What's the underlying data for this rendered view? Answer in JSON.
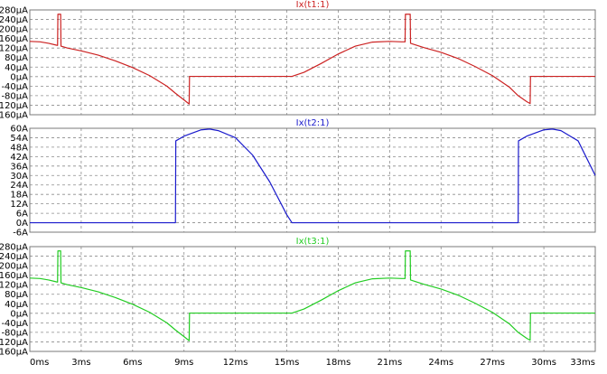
{
  "chart_data": [
    {
      "type": "line",
      "title": "Ix(t1:1)",
      "title_color": "#cc2222",
      "series": [
        {
          "name": "Ix(t1:1)",
          "color": "#cc2222",
          "points": [
            [
              0,
              148
            ],
            [
              0.6,
              146
            ],
            [
              1.1,
              140
            ],
            [
              1.5,
              133
            ],
            [
              1.62,
              131
            ],
            [
              1.64,
              262
            ],
            [
              1.8,
              262
            ],
            [
              1.82,
              128
            ],
            [
              2.2,
              120
            ],
            [
              3,
              108
            ],
            [
              4,
              90
            ],
            [
              5,
              66
            ],
            [
              6,
              38
            ],
            [
              7,
              4
            ],
            [
              8,
              -40
            ],
            [
              8.5,
              -70
            ],
            [
              9,
              -98
            ],
            [
              9.3,
              -115
            ],
            [
              9.32,
              1
            ],
            [
              15.3,
              1
            ],
            [
              16,
              18
            ],
            [
              17,
              55
            ],
            [
              18,
              95
            ],
            [
              19,
              128
            ],
            [
              20,
              145
            ],
            [
              21,
              148
            ],
            [
              21.7,
              146
            ],
            [
              21.9,
              146
            ],
            [
              21.92,
              262
            ],
            [
              22.2,
              262
            ],
            [
              22.22,
              140
            ],
            [
              23,
              122
            ],
            [
              24,
              102
            ],
            [
              25,
              76
            ],
            [
              26,
              42
            ],
            [
              27,
              4
            ],
            [
              28,
              -45
            ],
            [
              28.5,
              -80
            ],
            [
              29,
              -105
            ],
            [
              29.2,
              -113
            ],
            [
              29.22,
              1
            ],
            [
              33,
              1
            ]
          ]
        }
      ],
      "y_ticks": [
        "280µA",
        "240µA",
        "200µA",
        "160µA",
        "120µA",
        "80µA",
        "40µA",
        "0µA",
        "-40µA",
        "-80µA",
        "-120µA",
        "-160µA"
      ],
      "ylim": [
        -160,
        280
      ]
    },
    {
      "type": "line",
      "title": "Ix(t2:1)",
      "title_color": "#1a1acc",
      "series": [
        {
          "name": "Ix(t2:1)",
          "color": "#1a1acc",
          "points": [
            [
              0,
              0
            ],
            [
              8.5,
              0
            ],
            [
              8.52,
              52
            ],
            [
              9,
              55
            ],
            [
              10,
              59
            ],
            [
              10.5,
              59.5
            ],
            [
              11,
              58.5
            ],
            [
              12,
              54
            ],
            [
              13,
              43
            ],
            [
              14,
              26
            ],
            [
              15,
              5
            ],
            [
              15.3,
              0
            ],
            [
              28.5,
              0
            ],
            [
              28.52,
              52
            ],
            [
              29,
              55
            ],
            [
              30,
              59
            ],
            [
              30.5,
              59.5
            ],
            [
              31,
              58.5
            ],
            [
              32,
              52
            ],
            [
              33,
              30
            ]
          ]
        }
      ],
      "y_ticks": [
        "60A",
        "54A",
        "48A",
        "42A",
        "36A",
        "30A",
        "24A",
        "18A",
        "12A",
        "6A",
        "0A",
        "-6A"
      ],
      "ylim": [
        -6,
        60
      ]
    },
    {
      "type": "line",
      "title": "Ix(t3:1)",
      "title_color": "#22cc22",
      "series": [
        {
          "name": "Ix(t3:1)",
          "color": "#22cc22",
          "points": [
            [
              0,
              148
            ],
            [
              0.6,
              146
            ],
            [
              1.1,
              140
            ],
            [
              1.5,
              133
            ],
            [
              1.62,
              131
            ],
            [
              1.64,
              262
            ],
            [
              1.8,
              262
            ],
            [
              1.82,
              128
            ],
            [
              2.2,
              120
            ],
            [
              3,
              108
            ],
            [
              4,
              90
            ],
            [
              5,
              66
            ],
            [
              6,
              38
            ],
            [
              7,
              4
            ],
            [
              8,
              -40
            ],
            [
              8.5,
              -70
            ],
            [
              9,
              -98
            ],
            [
              9.3,
              -115
            ],
            [
              9.32,
              1
            ],
            [
              15.3,
              1
            ],
            [
              16,
              18
            ],
            [
              17,
              55
            ],
            [
              18,
              95
            ],
            [
              19,
              128
            ],
            [
              20,
              145
            ],
            [
              21,
              148
            ],
            [
              21.7,
              146
            ],
            [
              21.9,
              146
            ],
            [
              21.92,
              262
            ],
            [
              22.2,
              262
            ],
            [
              22.22,
              140
            ],
            [
              23,
              122
            ],
            [
              24,
              102
            ],
            [
              25,
              76
            ],
            [
              26,
              42
            ],
            [
              27,
              4
            ],
            [
              28,
              -45
            ],
            [
              28.5,
              -80
            ],
            [
              29,
              -105
            ],
            [
              29.2,
              -113
            ],
            [
              29.22,
              1
            ],
            [
              33,
              1
            ]
          ]
        }
      ],
      "y_ticks": [
        "280µA",
        "240µA",
        "200µA",
        "160µA",
        "120µA",
        "80µA",
        "40µA",
        "0µA",
        "-40µA",
        "-80µA",
        "-120µA",
        "-160µA"
      ],
      "ylim": [
        -160,
        280
      ]
    }
  ],
  "x_axis": {
    "ticks": [
      "0ms",
      "3ms",
      "6ms",
      "9ms",
      "12ms",
      "15ms",
      "18ms",
      "21ms",
      "24ms",
      "27ms",
      "30ms",
      "33ms"
    ],
    "xlim": [
      0,
      33
    ]
  },
  "grid": true,
  "colors": {
    "background": "#ffffff",
    "grid": "#8c8c8c",
    "axis_text": "#000000"
  }
}
